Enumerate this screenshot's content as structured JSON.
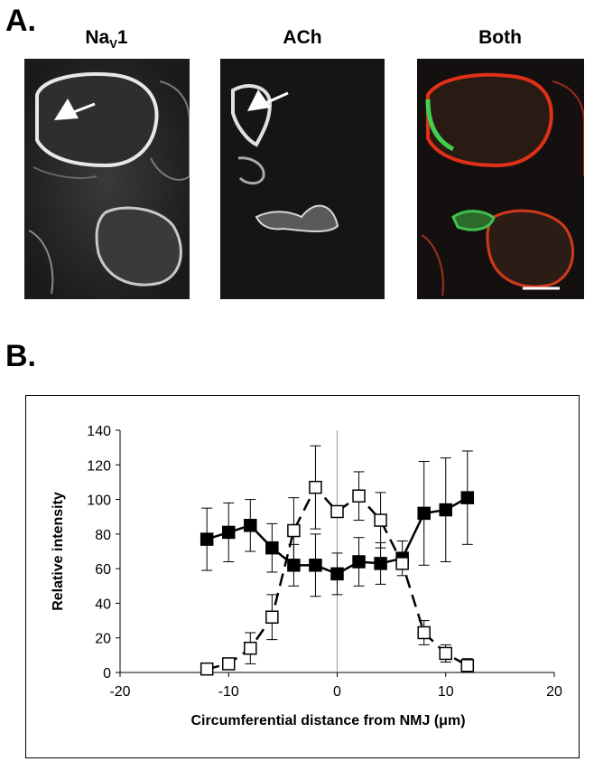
{
  "panel_a": {
    "letter": "A.",
    "titles": {
      "nav_main": "Na",
      "nav_sub": "V",
      "nav_suffix": "1",
      "ach": "ACh",
      "both": "Both"
    }
  },
  "panel_b": {
    "letter": "B."
  },
  "chart_data": {
    "type": "line",
    "xlabel": "Circumferential distance from NMJ (μm)",
    "ylabel": "Relative intensity",
    "xlim": [
      -20,
      20
    ],
    "ylim": [
      0,
      140
    ],
    "xticks": [
      -20,
      -10,
      0,
      10,
      20
    ],
    "yticks": [
      0,
      20,
      40,
      60,
      80,
      100,
      120,
      140
    ],
    "grid": false,
    "series": [
      {
        "marker": "filled-square",
        "line": "solid",
        "color": "#000000",
        "x": [
          -12,
          -10,
          -8,
          -6,
          -4,
          -2,
          0,
          2,
          4,
          6,
          8,
          10,
          12
        ],
        "y": [
          77,
          81,
          85,
          72,
          62,
          62,
          57,
          64,
          63,
          66,
          92,
          94,
          101
        ],
        "error": [
          18,
          17,
          15,
          14,
          12,
          18,
          12,
          14,
          12,
          10,
          30,
          30,
          27
        ]
      },
      {
        "marker": "open-square",
        "line": "dashed",
        "color": "#000000",
        "x": [
          -12,
          -10,
          -8,
          -6,
          -4,
          -2,
          0,
          2,
          4,
          6,
          8,
          10,
          12
        ],
        "y": [
          2,
          5,
          14,
          32,
          82,
          107,
          93,
          102,
          88,
          63,
          23,
          11,
          4
        ],
        "error": [
          0,
          0,
          9,
          13,
          19,
          24,
          0,
          14,
          16,
          0,
          7,
          5,
          4
        ]
      }
    ]
  }
}
